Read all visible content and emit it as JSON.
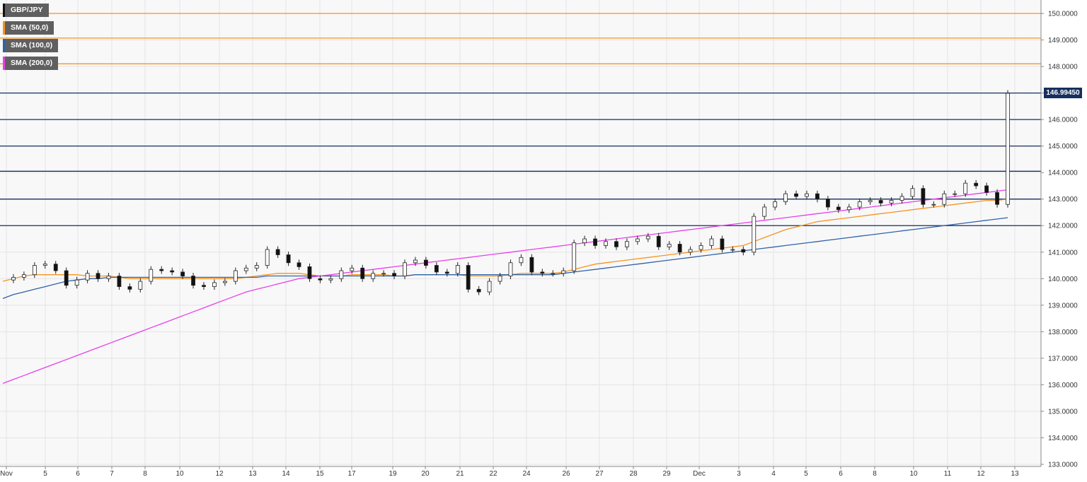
{
  "legend": [
    {
      "label": "GBP/JPY",
      "color": "#111111"
    },
    {
      "label": "SMA (50,0)",
      "color": "#f7931e"
    },
    {
      "label": "SMA (100,0)",
      "color": "#2e62a8"
    },
    {
      "label": "SMA (200,0)",
      "color": "#e83ee8"
    }
  ],
  "last_price": "146.99450",
  "chart_data": {
    "type": "line",
    "title": "",
    "ylim": [
      133.0,
      150.0
    ],
    "y_ticks": [
      "133.0000",
      "134.0000",
      "135.0000",
      "136.0000",
      "137.0000",
      "138.0000",
      "139.0000",
      "140.0000",
      "141.0000",
      "142.0000",
      "143.0000",
      "144.0000",
      "145.0000",
      "146.0000",
      "147.0000",
      "148.0000",
      "149.0000",
      "150.0000"
    ],
    "x_ticks": [
      "Nov",
      "5",
      "6",
      "7",
      "8",
      "10",
      "12",
      "13",
      "14",
      "15",
      "17",
      "19",
      "20",
      "21",
      "22",
      "24",
      "26",
      "27",
      "28",
      "29",
      "Dec",
      "3",
      "4",
      "5",
      "6",
      "8",
      "10",
      "11",
      "12",
      "13"
    ],
    "horizontal_levels": [
      {
        "value": 150.0,
        "color": "#f7931e"
      },
      {
        "value": 149.07,
        "color": "#f7931e"
      },
      {
        "value": 148.1,
        "color": "#f7931e"
      },
      {
        "value": 147.0,
        "color": "#16305e"
      },
      {
        "value": 146.0,
        "color": "#16305e"
      },
      {
        "value": 145.0,
        "color": "#16305e"
      },
      {
        "value": 144.05,
        "color": "#16305e"
      },
      {
        "value": 143.0,
        "color": "#16305e"
      },
      {
        "value": 142.0,
        "color": "#16305e"
      }
    ],
    "price": [
      139.95,
      140.05,
      140.15,
      140.5,
      140.55,
      140.3,
      139.75,
      139.95,
      140.2,
      140.0,
      140.1,
      139.7,
      139.6,
      139.9,
      140.35,
      140.3,
      140.25,
      140.1,
      139.75,
      139.7,
      139.85,
      139.9,
      140.3,
      140.4,
      140.5,
      141.1,
      140.9,
      140.6,
      140.45,
      140.0,
      139.95,
      140.0,
      140.3,
      140.4,
      140.0,
      140.2,
      140.2,
      140.1,
      140.6,
      140.7,
      140.5,
      140.25,
      140.2,
      140.5,
      139.6,
      139.5,
      139.9,
      140.1,
      140.6,
      140.8,
      140.25,
      140.2,
      140.2,
      140.3,
      141.35,
      141.5,
      141.25,
      141.4,
      141.2,
      141.4,
      141.5,
      141.6,
      141.2,
      141.3,
      141.0,
      141.1,
      141.25,
      141.5,
      141.1,
      141.1,
      141.0,
      142.35,
      142.7,
      142.9,
      143.2,
      143.1,
      143.2,
      143.0,
      142.7,
      142.6,
      142.7,
      142.9,
      142.95,
      142.85,
      142.95,
      143.1,
      143.4,
      142.8,
      142.8,
      143.2,
      143.2,
      143.6,
      143.5,
      143.25,
      142.8,
      146.99
    ],
    "series": [
      {
        "name": "SMA (50,0)",
        "color": "#f7931e",
        "values": [
          139.9,
          140.0,
          140.1,
          140.15,
          140.15,
          140.15,
          140.15,
          140.15,
          140.1,
          140.1,
          140.1,
          140.05,
          140.0,
          140.0,
          140.0,
          140.0,
          140.0,
          140.0,
          140.0,
          140.0,
          140.0,
          140.0,
          140.0,
          140.05,
          140.1,
          140.15,
          140.2,
          140.2,
          140.2,
          140.15,
          140.1,
          140.1,
          140.1,
          140.15,
          140.15,
          140.15,
          140.15,
          140.1,
          140.1,
          140.15,
          140.15,
          140.15,
          140.15,
          140.15,
          140.1,
          140.1,
          140.1,
          140.1,
          140.15,
          140.2,
          140.2,
          140.2,
          140.2,
          140.25,
          140.35,
          140.45,
          140.55,
          140.6,
          140.65,
          140.7,
          140.75,
          140.8,
          140.85,
          140.9,
          140.95,
          141.0,
          141.05,
          141.1,
          141.15,
          141.2,
          141.25,
          141.4,
          141.55,
          141.7,
          141.85,
          141.95,
          142.05,
          142.15,
          142.2,
          142.25,
          142.3,
          142.35,
          142.4,
          142.45,
          142.5,
          142.55,
          142.6,
          142.65,
          142.7,
          142.75,
          142.8,
          142.85,
          142.9,
          142.95,
          142.95,
          143.0
        ]
      },
      {
        "name": "SMA (100,0)",
        "color": "#2e62a8",
        "values": [
          139.25,
          139.4,
          139.5,
          139.6,
          139.7,
          139.8,
          139.9,
          139.95,
          140.0,
          140.0,
          140.05,
          140.05,
          140.05,
          140.05,
          140.05,
          140.05,
          140.05,
          140.05,
          140.05,
          140.05,
          140.05,
          140.05,
          140.05,
          140.05,
          140.05,
          140.1,
          140.1,
          140.1,
          140.1,
          140.1,
          140.1,
          140.1,
          140.1,
          140.1,
          140.1,
          140.1,
          140.1,
          140.1,
          140.1,
          140.15,
          140.15,
          140.15,
          140.15,
          140.15,
          140.15,
          140.15,
          140.15,
          140.15,
          140.15,
          140.15,
          140.15,
          140.15,
          140.15,
          140.2,
          140.25,
          140.3,
          140.35,
          140.4,
          140.45,
          140.5,
          140.55,
          140.6,
          140.65,
          140.7,
          140.75,
          140.8,
          140.85,
          140.9,
          140.95,
          141.0,
          141.05,
          141.1,
          141.15,
          141.2,
          141.25,
          141.3,
          141.35,
          141.4,
          141.45,
          141.5,
          141.55,
          141.6,
          141.65,
          141.7,
          141.75,
          141.8,
          141.85,
          141.9,
          141.95,
          142.0,
          142.05,
          142.1,
          142.15,
          142.2,
          142.25,
          142.3
        ]
      },
      {
        "name": "SMA (200,0)",
        "color": "#e83ee8",
        "values": [
          136.05,
          136.2,
          136.35,
          136.5,
          136.65,
          136.8,
          136.95,
          137.1,
          137.25,
          137.4,
          137.55,
          137.7,
          137.85,
          138.0,
          138.15,
          138.3,
          138.45,
          138.6,
          138.75,
          138.9,
          139.05,
          139.2,
          139.35,
          139.5,
          139.6,
          139.7,
          139.8,
          139.9,
          140.0,
          140.05,
          140.1,
          140.15,
          140.2,
          140.25,
          140.3,
          140.35,
          140.4,
          140.45,
          140.5,
          140.55,
          140.6,
          140.65,
          140.7,
          140.75,
          140.8,
          140.85,
          140.9,
          140.95,
          141.0,
          141.05,
          141.1,
          141.15,
          141.2,
          141.25,
          141.3,
          141.35,
          141.4,
          141.45,
          141.5,
          141.55,
          141.6,
          141.65,
          141.7,
          141.75,
          141.8,
          141.85,
          141.9,
          141.95,
          142.0,
          142.05,
          142.1,
          142.15,
          142.2,
          142.25,
          142.3,
          142.35,
          142.4,
          142.45,
          142.5,
          142.55,
          142.6,
          142.65,
          142.7,
          142.75,
          142.8,
          142.85,
          142.9,
          142.95,
          143.0,
          143.05,
          143.1,
          143.15,
          143.2,
          143.25,
          143.3,
          143.35
        ]
      }
    ]
  }
}
